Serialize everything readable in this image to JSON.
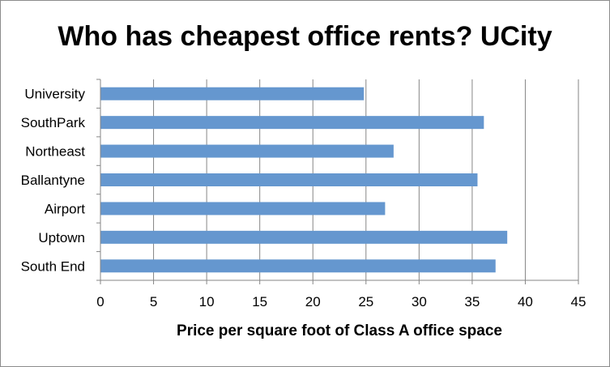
{
  "chart_data": {
    "type": "bar",
    "orientation": "horizontal",
    "title": "Who has cheapest office rents? UCity",
    "xlabel": "Price per square foot of Class A office space",
    "ylabel": "",
    "categories": [
      "South End",
      "Uptown",
      "Airport",
      "Ballantyne",
      "Northeast",
      "SouthPark",
      "University"
    ],
    "values": [
      37.2,
      38.3,
      26.8,
      35.5,
      27.6,
      36.1,
      24.8
    ],
    "xlim": [
      0,
      45
    ],
    "xticks": [
      "0",
      "5",
      "10",
      "15",
      "20",
      "25",
      "30",
      "35",
      "40",
      "45"
    ],
    "grid": "vertical",
    "colors": {
      "bar": "#6597cf",
      "grid": "#868686",
      "axis": "#868686"
    }
  }
}
